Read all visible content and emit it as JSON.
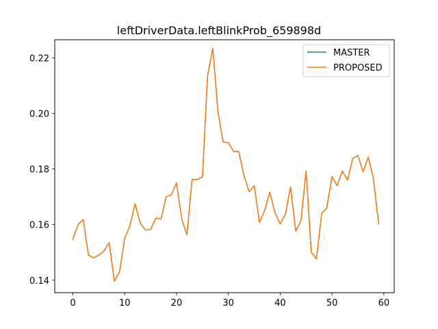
{
  "chart_data": {
    "type": "line",
    "title": "leftDriverData.leftBlinkProb_659898d",
    "xlabel": "",
    "ylabel": "",
    "xlim": [
      -3.5,
      62
    ],
    "ylim": [
      0.1355,
      0.2265
    ],
    "xticks": [
      0,
      10,
      20,
      30,
      40,
      50,
      60
    ],
    "yticks": [
      0.14,
      0.16,
      0.18,
      0.2,
      0.22
    ],
    "ytick_labels": [
      "0.14",
      "0.16",
      "0.18",
      "0.20",
      "0.22"
    ],
    "grid": false,
    "legend_position": "top-right",
    "x": [
      0,
      1,
      2,
      3,
      4,
      5,
      6,
      7,
      8,
      9,
      10,
      11,
      12,
      13,
      14,
      15,
      16,
      17,
      18,
      19,
      20,
      21,
      22,
      23,
      24,
      25,
      26,
      27,
      28,
      29,
      30,
      31,
      32,
      33,
      34,
      35,
      36,
      37,
      38,
      39,
      40,
      41,
      42,
      43,
      44,
      45,
      46,
      47,
      48,
      49,
      50,
      51,
      52,
      53,
      54,
      55,
      56,
      57,
      58,
      59
    ],
    "series": [
      {
        "name": "MASTER",
        "color": "#1f77b4",
        "values": [
          0.1548,
          0.16,
          0.1618,
          0.149,
          0.148,
          0.149,
          0.1505,
          0.1535,
          0.1397,
          0.143,
          0.155,
          0.1595,
          0.1675,
          0.1605,
          0.158,
          0.1582,
          0.1623,
          0.162,
          0.17,
          0.1707,
          0.175,
          0.162,
          0.1563,
          0.1762,
          0.1762,
          0.1772,
          0.2137,
          0.2235,
          0.2005,
          0.1897,
          0.1895,
          0.1863,
          0.1863,
          0.1778,
          0.1718,
          0.174,
          0.1608,
          0.165,
          0.1717,
          0.1642,
          0.1602,
          0.1637,
          0.1735,
          0.1577,
          0.1613,
          0.1793,
          0.15,
          0.1477,
          0.164,
          0.166,
          0.1773,
          0.174,
          0.1793,
          0.176,
          0.1838,
          0.1848,
          0.179,
          0.1843,
          0.1765,
          0.1602
        ]
      },
      {
        "name": "PROPOSED",
        "color": "#ff7f0e",
        "values": [
          0.1548,
          0.16,
          0.1618,
          0.149,
          0.148,
          0.149,
          0.1505,
          0.1535,
          0.1397,
          0.143,
          0.155,
          0.1595,
          0.1675,
          0.1605,
          0.158,
          0.1582,
          0.1623,
          0.162,
          0.17,
          0.1707,
          0.175,
          0.162,
          0.1563,
          0.1762,
          0.1762,
          0.1772,
          0.2137,
          0.2235,
          0.2005,
          0.1897,
          0.1895,
          0.1863,
          0.1863,
          0.1778,
          0.1718,
          0.174,
          0.1608,
          0.165,
          0.1717,
          0.1642,
          0.1602,
          0.1637,
          0.1735,
          0.1577,
          0.1613,
          0.1793,
          0.15,
          0.1477,
          0.164,
          0.166,
          0.1773,
          0.174,
          0.1793,
          0.176,
          0.1838,
          0.1848,
          0.179,
          0.1843,
          0.1765,
          0.1602
        ]
      }
    ]
  }
}
